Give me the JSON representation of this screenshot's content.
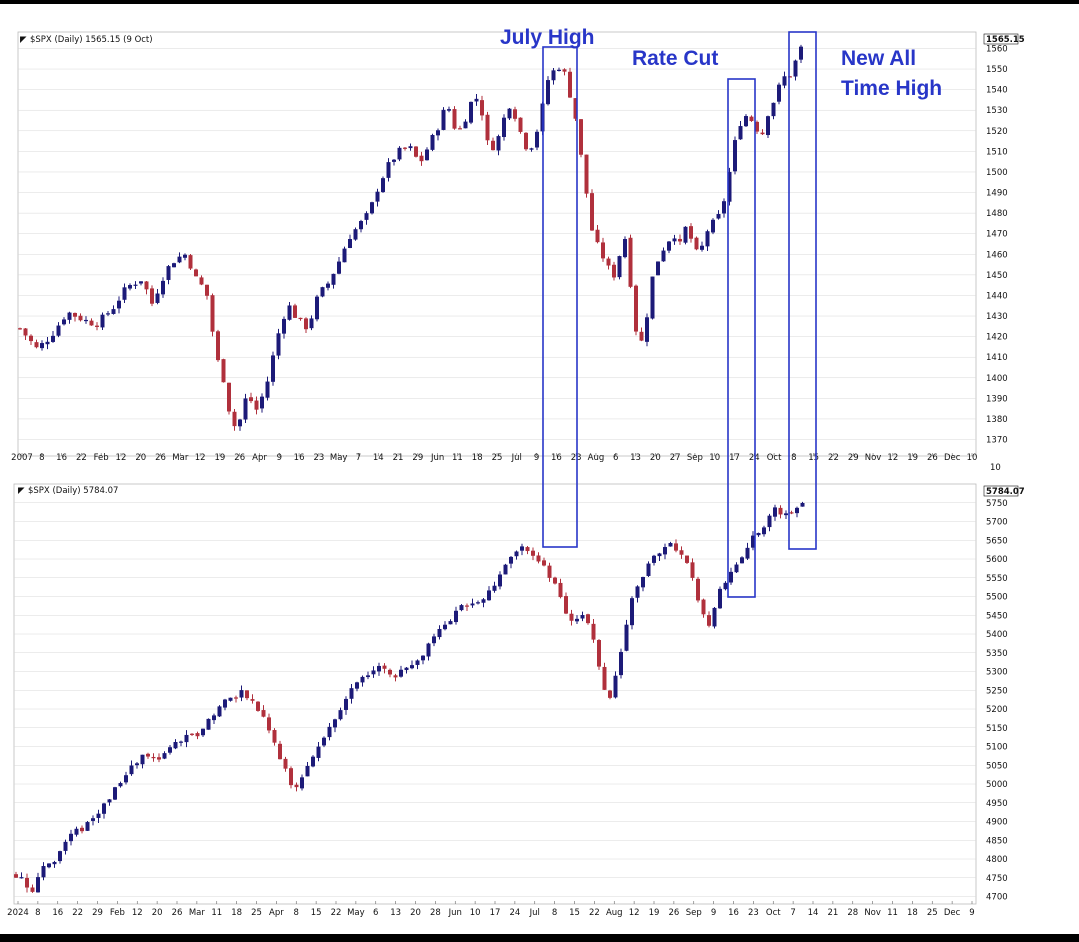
{
  "colors": {
    "up": "#1c1a78",
    "down": "#b0303c",
    "annotation": "#2836c8",
    "grid": "#d8d8d8"
  },
  "header_icon": "chart-logo-icon",
  "annotations": [
    {
      "text": "July High",
      "lines": [
        "July High"
      ]
    },
    {
      "text": "Rate Cut",
      "lines": [
        "Rate Cut"
      ]
    },
    {
      "text": "New All Time High",
      "lines": [
        "New All",
        "Time High"
      ]
    }
  ],
  "chart_data": [
    {
      "type": "candlestick",
      "title": "$SPX (Daily) 1565.15 (9 Oct)",
      "last_price_label": "1565.15",
      "ylim": [
        1362,
        1568
      ],
      "y_ticks": [
        1370,
        1380,
        1390,
        1400,
        1410,
        1420,
        1430,
        1440,
        1450,
        1460,
        1470,
        1480,
        1490,
        1500,
        1510,
        1520,
        1530,
        1540,
        1550,
        1560
      ],
      "x_tick_labels": [
        "2007",
        "8",
        "16",
        "22",
        "Feb",
        "12",
        "20",
        "26",
        "Mar",
        "12",
        "19",
        "26",
        "Apr",
        "9",
        "16",
        "23",
        "May",
        "7",
        "14",
        "21",
        "29",
        "Jun",
        "11",
        "18",
        "25",
        "Jul",
        "9",
        "16",
        "23",
        "Aug",
        "6",
        "13",
        "20",
        "27",
        "Sep",
        "10",
        "17",
        "24",
        "Oct",
        "8",
        "15",
        "22",
        "29",
        "Nov",
        "12",
        "19",
        "26",
        "Dec",
        "10"
      ],
      "trailing_axis_label": "10",
      "path": [
        [
          0,
          1424
        ],
        [
          10,
          1414
        ],
        [
          18,
          1420
        ],
        [
          28,
          1432
        ],
        [
          38,
          1428
        ],
        [
          45,
          1426
        ],
        [
          55,
          1434
        ],
        [
          63,
          1444
        ],
        [
          72,
          1448
        ],
        [
          78,
          1436
        ],
        [
          86,
          1452
        ],
        [
          92,
          1458
        ],
        [
          98,
          1460
        ],
        [
          104,
          1448
        ],
        [
          110,
          1442
        ],
        [
          116,
          1410
        ],
        [
          120,
          1400
        ],
        [
          124,
          1382
        ],
        [
          128,
          1374
        ],
        [
          134,
          1392
        ],
        [
          140,
          1384
        ],
        [
          146,
          1398
        ],
        [
          152,
          1420
        ],
        [
          158,
          1436
        ],
        [
          164,
          1428
        ],
        [
          170,
          1424
        ],
        [
          176,
          1440
        ],
        [
          182,
          1446
        ],
        [
          188,
          1456
        ],
        [
          194,
          1468
        ],
        [
          200,
          1474
        ],
        [
          206,
          1480
        ],
        [
          212,
          1494
        ],
        [
          218,
          1504
        ],
        [
          224,
          1510
        ],
        [
          230,
          1512
        ],
        [
          236,
          1504
        ],
        [
          242,
          1514
        ],
        [
          248,
          1524
        ],
        [
          252,
          1534
        ],
        [
          258,
          1518
        ],
        [
          264,
          1528
        ],
        [
          268,
          1538
        ],
        [
          272,
          1532
        ],
        [
          276,
          1514
        ],
        [
          280,
          1512
        ],
        [
          284,
          1520
        ],
        [
          288,
          1534
        ],
        [
          292,
          1528
        ],
        [
          296,
          1518
        ],
        [
          300,
          1510
        ],
        [
          304,
          1516
        ],
        [
          308,
          1530
        ],
        [
          312,
          1546
        ],
        [
          316,
          1550
        ],
        [
          320,
          1552
        ],
        [
          324,
          1540
        ],
        [
          328,
          1526
        ],
        [
          330,
          1514
        ],
        [
          334,
          1492
        ],
        [
          338,
          1470
        ],
        [
          342,
          1462
        ],
        [
          346,
          1456
        ],
        [
          350,
          1448
        ],
        [
          354,
          1460
        ],
        [
          358,
          1470
        ],
        [
          362,
          1430
        ],
        [
          366,
          1414
        ],
        [
          370,
          1430
        ],
        [
          374,
          1452
        ],
        [
          378,
          1460
        ],
        [
          382,
          1466
        ],
        [
          386,
          1470
        ],
        [
          390,
          1464
        ],
        [
          394,
          1476
        ],
        [
          398,
          1460
        ],
        [
          402,
          1462
        ],
        [
          406,
          1472
        ],
        [
          410,
          1476
        ],
        [
          414,
          1480
        ],
        [
          418,
          1496
        ],
        [
          422,
          1514
        ],
        [
          426,
          1526
        ],
        [
          430,
          1528
        ],
        [
          434,
          1522
        ],
        [
          438,
          1518
        ],
        [
          442,
          1530
        ],
        [
          446,
          1536
        ],
        [
          450,
          1546
        ],
        [
          454,
          1546
        ],
        [
          458,
          1554
        ],
        [
          462,
          1562
        ],
        [
          464,
          1564
        ]
      ],
      "rounds": {
        "dx": 5.5,
        "y": 1
      }
    },
    {
      "type": "candlestick",
      "title": "$SPX (Daily) 5784.07",
      "last_price_label": "5784.07",
      "ylim": [
        4680,
        5800
      ],
      "y_ticks": [
        4700,
        4750,
        4800,
        4850,
        4900,
        4950,
        5000,
        5050,
        5100,
        5150,
        5200,
        5250,
        5300,
        5350,
        5400,
        5450,
        5500,
        5550,
        5600,
        5650,
        5700,
        5750
      ],
      "x_tick_labels": [
        "2024",
        "8",
        "16",
        "22",
        "29",
        "Feb",
        "12",
        "20",
        "26",
        "Mar",
        "11",
        "18",
        "25",
        "Apr",
        "8",
        "15",
        "22",
        "May",
        "6",
        "13",
        "20",
        "28",
        "Jun",
        "10",
        "17",
        "24",
        "Jul",
        "8",
        "15",
        "22",
        "Aug",
        "12",
        "19",
        "26",
        "Sep",
        "9",
        "16",
        "23",
        "Oct",
        "7",
        "14",
        "21",
        "28",
        "Nov",
        "11",
        "18",
        "25",
        "Dec",
        "9"
      ],
      "path": [
        [
          0,
          4760
        ],
        [
          10,
          4720
        ],
        [
          16,
          4780
        ],
        [
          24,
          4800
        ],
        [
          32,
          4860
        ],
        [
          40,
          4880
        ],
        [
          48,
          4920
        ],
        [
          56,
          4960
        ],
        [
          62,
          5000
        ],
        [
          70,
          5040
        ],
        [
          78,
          5080
        ],
        [
          86,
          5060
        ],
        [
          94,
          5100
        ],
        [
          102,
          5120
        ],
        [
          110,
          5130
        ],
        [
          118,
          5180
        ],
        [
          126,
          5220
        ],
        [
          134,
          5240
        ],
        [
          138,
          5250
        ],
        [
          144,
          5210
        ],
        [
          150,
          5180
        ],
        [
          156,
          5120
        ],
        [
          162,
          5040
        ],
        [
          168,
          4990
        ],
        [
          172,
          5000
        ],
        [
          180,
          5080
        ],
        [
          186,
          5120
        ],
        [
          194,
          5180
        ],
        [
          202,
          5250
        ],
        [
          210,
          5280
        ],
        [
          218,
          5310
        ],
        [
          226,
          5300
        ],
        [
          232,
          5290
        ],
        [
          238,
          5320
        ],
        [
          246,
          5350
        ],
        [
          254,
          5400
        ],
        [
          262,
          5440
        ],
        [
          270,
          5470
        ],
        [
          278,
          5490
        ],
        [
          286,
          5510
        ],
        [
          294,
          5560
        ],
        [
          300,
          5610
        ],
        [
          306,
          5640
        ],
        [
          312,
          5620
        ],
        [
          318,
          5580
        ],
        [
          324,
          5550
        ],
        [
          328,
          5520
        ],
        [
          332,
          5450
        ],
        [
          338,
          5420
        ],
        [
          344,
          5470
        ],
        [
          350,
          5380
        ],
        [
          354,
          5290
        ],
        [
          358,
          5200
        ],
        [
          362,
          5280
        ],
        [
          368,
          5400
        ],
        [
          374,
          5520
        ],
        [
          380,
          5560
        ],
        [
          386,
          5600
        ],
        [
          392,
          5640
        ],
        [
          398,
          5630
        ],
        [
          404,
          5600
        ],
        [
          408,
          5560
        ],
        [
          412,
          5500
        ],
        [
          416,
          5450
        ],
        [
          420,
          5420
        ],
        [
          426,
          5520
        ],
        [
          432,
          5560
        ],
        [
          438,
          5600
        ],
        [
          444,
          5640
        ],
        [
          450,
          5680
        ],
        [
          456,
          5710
        ],
        [
          460,
          5740
        ],
        [
          464,
          5720
        ],
        [
          468,
          5720
        ],
        [
          472,
          5740
        ],
        [
          476,
          5760
        ],
        [
          478,
          5784
        ]
      ],
      "rounds": {
        "dx": 5.5,
        "y": 1
      }
    }
  ]
}
